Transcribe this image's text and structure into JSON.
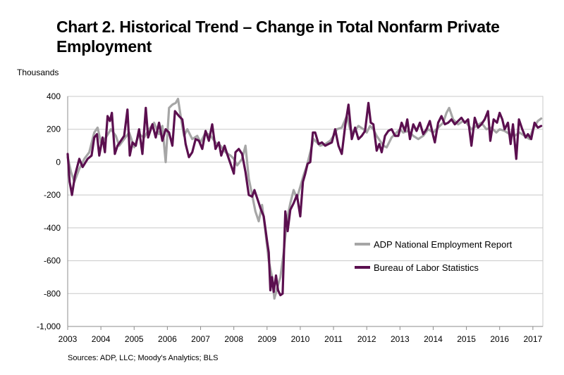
{
  "title": "Chart 2. Historical Trend – Change in Total Nonfarm Private Employment",
  "source": "Sources: ADP, LLC; Moody's Analytics; BLS",
  "chart_data": {
    "type": "line",
    "title": "Chart 2. Historical Trend – Change in Total Nonfarm Private Employment",
    "ylabel": "Thousands",
    "xlabel": "",
    "ylim": [
      -1000,
      400
    ],
    "xlim": [
      2003,
      2017.3
    ],
    "yticks": [
      400,
      200,
      0,
      -200,
      -400,
      -600,
      -800,
      -1000
    ],
    "ytick_labels": [
      "400",
      "200",
      "0",
      "-200",
      "-400",
      "-600",
      "-800",
      "-1,000"
    ],
    "xticks": [
      2003,
      2004,
      2005,
      2006,
      2007,
      2008,
      2009,
      2010,
      2011,
      2012,
      2013,
      2014,
      2015,
      2016,
      2017
    ],
    "xtick_labels": [
      "2003",
      "2004",
      "2005",
      "2006",
      "2007",
      "2008",
      "2009",
      "2010",
      "2011",
      "2012",
      "2013",
      "2014",
      "2015",
      "2016",
      "2017"
    ],
    "grid": "horizontal",
    "legend_position": "bottom-right",
    "series": [
      {
        "name": "ADP National Employment Report",
        "color": "#a6a6a6",
        "points": [
          [
            2003.0,
            30
          ],
          [
            2003.1,
            -60
          ],
          [
            2003.2,
            -120
          ],
          [
            2003.35,
            -40
          ],
          [
            2003.5,
            20
          ],
          [
            2003.65,
            60
          ],
          [
            2003.8,
            180
          ],
          [
            2003.9,
            210
          ],
          [
            2004.0,
            120
          ],
          [
            2004.15,
            150
          ],
          [
            2004.3,
            200
          ],
          [
            2004.45,
            160
          ],
          [
            2004.55,
            100
          ],
          [
            2004.7,
            140
          ],
          [
            2004.85,
            180
          ],
          [
            2005.0,
            90
          ],
          [
            2005.15,
            170
          ],
          [
            2005.3,
            150
          ],
          [
            2005.45,
            200
          ],
          [
            2005.6,
            240
          ],
          [
            2005.75,
            170
          ],
          [
            2005.85,
            220
          ],
          [
            2005.95,
            0
          ],
          [
            2006.05,
            330
          ],
          [
            2006.15,
            350
          ],
          [
            2006.25,
            360
          ],
          [
            2006.32,
            385
          ],
          [
            2006.4,
            280
          ],
          [
            2006.5,
            160
          ],
          [
            2006.6,
            200
          ],
          [
            2006.75,
            140
          ],
          [
            2006.9,
            160
          ],
          [
            2007.0,
            120
          ],
          [
            2007.15,
            180
          ],
          [
            2007.3,
            160
          ],
          [
            2007.45,
            120
          ],
          [
            2007.6,
            100
          ],
          [
            2007.75,
            60
          ],
          [
            2007.9,
            40
          ],
          [
            2008.0,
            20
          ],
          [
            2008.1,
            -20
          ],
          [
            2008.25,
            20
          ],
          [
            2008.35,
            100
          ],
          [
            2008.45,
            -100
          ],
          [
            2008.55,
            -200
          ],
          [
            2008.65,
            -300
          ],
          [
            2008.75,
            -360
          ],
          [
            2008.85,
            -260
          ],
          [
            2008.95,
            -420
          ],
          [
            2009.05,
            -600
          ],
          [
            2009.15,
            -700
          ],
          [
            2009.22,
            -830
          ],
          [
            2009.3,
            -770
          ],
          [
            2009.4,
            -700
          ],
          [
            2009.5,
            -550
          ],
          [
            2009.6,
            -350
          ],
          [
            2009.7,
            -250
          ],
          [
            2009.8,
            -170
          ],
          [
            2009.9,
            -220
          ],
          [
            2010.0,
            -150
          ],
          [
            2010.1,
            -80
          ],
          [
            2010.2,
            -20
          ],
          [
            2010.3,
            60
          ],
          [
            2010.4,
            140
          ],
          [
            2010.5,
            120
          ],
          [
            2010.6,
            100
          ],
          [
            2010.75,
            110
          ],
          [
            2010.9,
            130
          ],
          [
            2011.0,
            160
          ],
          [
            2011.1,
            200
          ],
          [
            2011.25,
            210
          ],
          [
            2011.4,
            280
          ],
          [
            2011.5,
            200
          ],
          [
            2011.6,
            180
          ],
          [
            2011.75,
            220
          ],
          [
            2011.9,
            200
          ],
          [
            2012.0,
            180
          ],
          [
            2012.1,
            220
          ],
          [
            2012.2,
            200
          ],
          [
            2012.3,
            160
          ],
          [
            2012.4,
            130
          ],
          [
            2012.5,
            100
          ],
          [
            2012.6,
            90
          ],
          [
            2012.75,
            150
          ],
          [
            2012.9,
            180
          ],
          [
            2013.0,
            200
          ],
          [
            2013.1,
            180
          ],
          [
            2013.25,
            190
          ],
          [
            2013.4,
            160
          ],
          [
            2013.55,
            140
          ],
          [
            2013.7,
            160
          ],
          [
            2013.85,
            200
          ],
          [
            2014.0,
            180
          ],
          [
            2014.15,
            210
          ],
          [
            2014.3,
            240
          ],
          [
            2014.4,
            300
          ],
          [
            2014.48,
            330
          ],
          [
            2014.6,
            260
          ],
          [
            2014.75,
            230
          ],
          [
            2014.9,
            250
          ],
          [
            2015.0,
            240
          ],
          [
            2015.15,
            200
          ],
          [
            2015.3,
            220
          ],
          [
            2015.45,
            240
          ],
          [
            2015.6,
            200
          ],
          [
            2015.75,
            210
          ],
          [
            2015.9,
            180
          ],
          [
            2016.0,
            200
          ],
          [
            2016.15,
            190
          ],
          [
            2016.3,
            170
          ],
          [
            2016.45,
            160
          ],
          [
            2016.6,
            180
          ],
          [
            2016.75,
            160
          ],
          [
            2016.9,
            140
          ],
          [
            2017.0,
            200
          ],
          [
            2017.15,
            250
          ],
          [
            2017.25,
            265
          ]
        ]
      },
      {
        "name": "Bureau of Labor Statistics",
        "color": "#5b0f4f",
        "points": [
          [
            2003.0,
            50
          ],
          [
            2003.06,
            -120
          ],
          [
            2003.13,
            -200
          ],
          [
            2003.22,
            -80
          ],
          [
            2003.35,
            20
          ],
          [
            2003.45,
            -30
          ],
          [
            2003.6,
            20
          ],
          [
            2003.72,
            40
          ],
          [
            2003.8,
            150
          ],
          [
            2003.88,
            170
          ],
          [
            2003.95,
            40
          ],
          [
            2004.05,
            150
          ],
          [
            2004.12,
            60
          ],
          [
            2004.2,
            280
          ],
          [
            2004.27,
            250
          ],
          [
            2004.33,
            300
          ],
          [
            2004.42,
            50
          ],
          [
            2004.5,
            100
          ],
          [
            2004.6,
            130
          ],
          [
            2004.7,
            160
          ],
          [
            2004.8,
            320
          ],
          [
            2004.87,
            40
          ],
          [
            2004.95,
            120
          ],
          [
            2005.05,
            100
          ],
          [
            2005.15,
            200
          ],
          [
            2005.25,
            50
          ],
          [
            2005.35,
            330
          ],
          [
            2005.42,
            150
          ],
          [
            2005.55,
            230
          ],
          [
            2005.65,
            150
          ],
          [
            2005.75,
            240
          ],
          [
            2005.85,
            130
          ],
          [
            2005.95,
            200
          ],
          [
            2006.05,
            180
          ],
          [
            2006.15,
            100
          ],
          [
            2006.23,
            310
          ],
          [
            2006.35,
            280
          ],
          [
            2006.45,
            260
          ],
          [
            2006.55,
            110
          ],
          [
            2006.65,
            30
          ],
          [
            2006.75,
            60
          ],
          [
            2006.85,
            140
          ],
          [
            2006.95,
            130
          ],
          [
            2007.05,
            80
          ],
          [
            2007.15,
            190
          ],
          [
            2007.25,
            130
          ],
          [
            2007.35,
            230
          ],
          [
            2007.45,
            80
          ],
          [
            2007.55,
            120
          ],
          [
            2007.62,
            40
          ],
          [
            2007.72,
            100
          ],
          [
            2007.8,
            50
          ],
          [
            2007.9,
            -10
          ],
          [
            2008.0,
            -70
          ],
          [
            2008.05,
            60
          ],
          [
            2008.15,
            80
          ],
          [
            2008.25,
            50
          ],
          [
            2008.35,
            -60
          ],
          [
            2008.45,
            -200
          ],
          [
            2008.55,
            -210
          ],
          [
            2008.62,
            -170
          ],
          [
            2008.72,
            -230
          ],
          [
            2008.8,
            -280
          ],
          [
            2008.9,
            -330
          ],
          [
            2009.0,
            -480
          ],
          [
            2009.05,
            -550
          ],
          [
            2009.1,
            -780
          ],
          [
            2009.15,
            -700
          ],
          [
            2009.2,
            -790
          ],
          [
            2009.27,
            -690
          ],
          [
            2009.33,
            -780
          ],
          [
            2009.4,
            -810
          ],
          [
            2009.47,
            -800
          ],
          [
            2009.55,
            -300
          ],
          [
            2009.62,
            -420
          ],
          [
            2009.7,
            -290
          ],
          [
            2009.8,
            -250
          ],
          [
            2009.9,
            -200
          ],
          [
            2010.0,
            -330
          ],
          [
            2010.08,
            -120
          ],
          [
            2010.15,
            -70
          ],
          [
            2010.22,
            -10
          ],
          [
            2010.3,
            0
          ],
          [
            2010.38,
            180
          ],
          [
            2010.45,
            180
          ],
          [
            2010.55,
            110
          ],
          [
            2010.65,
            120
          ],
          [
            2010.75,
            100
          ],
          [
            2010.85,
            110
          ],
          [
            2010.95,
            120
          ],
          [
            2011.05,
            200
          ],
          [
            2011.15,
            100
          ],
          [
            2011.25,
            50
          ],
          [
            2011.35,
            220
          ],
          [
            2011.45,
            350
          ],
          [
            2011.55,
            140
          ],
          [
            2011.65,
            210
          ],
          [
            2011.75,
            140
          ],
          [
            2011.85,
            160
          ],
          [
            2011.95,
            190
          ],
          [
            2012.05,
            360
          ],
          [
            2012.12,
            240
          ],
          [
            2012.2,
            230
          ],
          [
            2012.3,
            70
          ],
          [
            2012.38,
            110
          ],
          [
            2012.45,
            60
          ],
          [
            2012.55,
            160
          ],
          [
            2012.65,
            190
          ],
          [
            2012.75,
            200
          ],
          [
            2012.85,
            160
          ],
          [
            2012.95,
            160
          ],
          [
            2013.05,
            240
          ],
          [
            2013.15,
            190
          ],
          [
            2013.22,
            260
          ],
          [
            2013.3,
            140
          ],
          [
            2013.4,
            230
          ],
          [
            2013.5,
            190
          ],
          [
            2013.6,
            240
          ],
          [
            2013.7,
            170
          ],
          [
            2013.8,
            200
          ],
          [
            2013.9,
            250
          ],
          [
            2014.0,
            160
          ],
          [
            2014.05,
            120
          ],
          [
            2014.15,
            240
          ],
          [
            2014.25,
            280
          ],
          [
            2014.35,
            230
          ],
          [
            2014.45,
            240
          ],
          [
            2014.55,
            260
          ],
          [
            2014.65,
            230
          ],
          [
            2014.75,
            250
          ],
          [
            2014.85,
            270
          ],
          [
            2014.95,
            240
          ],
          [
            2015.05,
            260
          ],
          [
            2015.15,
            100
          ],
          [
            2015.25,
            270
          ],
          [
            2015.35,
            210
          ],
          [
            2015.45,
            230
          ],
          [
            2015.55,
            260
          ],
          [
            2015.65,
            310
          ],
          [
            2015.72,
            130
          ],
          [
            2015.82,
            260
          ],
          [
            2015.92,
            240
          ],
          [
            2016.0,
            300
          ],
          [
            2016.08,
            260
          ],
          [
            2016.15,
            200
          ],
          [
            2016.25,
            240
          ],
          [
            2016.33,
            110
          ],
          [
            2016.4,
            230
          ],
          [
            2016.5,
            20
          ],
          [
            2016.58,
            260
          ],
          [
            2016.68,
            200
          ],
          [
            2016.78,
            150
          ],
          [
            2016.85,
            170
          ],
          [
            2016.95,
            140
          ],
          [
            2017.05,
            240
          ],
          [
            2017.15,
            210
          ],
          [
            2017.25,
            220
          ]
        ]
      }
    ]
  }
}
